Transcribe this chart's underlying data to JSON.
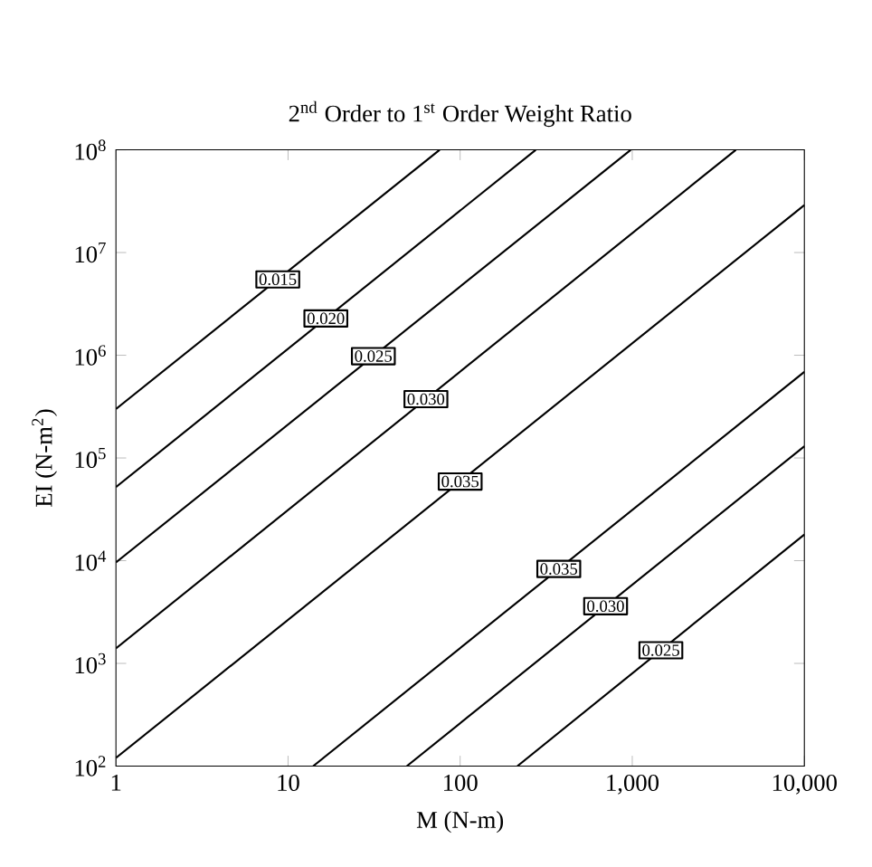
{
  "chart_data": {
    "type": "line",
    "title": "2$^{nd}$ Order to 1$^{st}$ Order Weight Ratio",
    "xlabel": "M (N-m)",
    "ylabel": "EI (N-m$^{2}$)",
    "log": "xy",
    "xlim": [
      1,
      10000
    ],
    "ylim": [
      100,
      100000000
    ],
    "xticks": [
      1,
      10,
      100,
      {
        "value": 1000,
        "label": "1,000"
      },
      {
        "value": 10000,
        "label": "10,000"
      }
    ],
    "yticks": [
      {
        "value": 100,
        "label": "10$^{2}$"
      },
      {
        "value": 1000,
        "label": "10$^{3}$"
      },
      {
        "value": 10000,
        "label": "10$^{4}$"
      },
      {
        "value": 100000,
        "label": "10$^{5}$"
      },
      {
        "value": 1000000,
        "label": "10$^{6}$"
      },
      {
        "value": 10000000,
        "label": "10$^{7}$"
      },
      {
        "value": 100000000,
        "label": "10$^{8}$"
      }
    ],
    "grid": false,
    "legend": false,
    "marker": "none",
    "line_style": "solid",
    "series": [
      {
        "name": "0.015",
        "color": "#000000",
        "x": [
          1,
          76
        ],
        "values": [
          300000,
          100000000
        ]
      },
      {
        "name": "0.020",
        "color": "#000000",
        "x": [
          1,
          275
        ],
        "values": [
          52000,
          100000000
        ]
      },
      {
        "name": "0.025",
        "color": "#000000",
        "x": [
          1,
          980
        ],
        "values": [
          9600,
          100000000
        ]
      },
      {
        "name": "0.030",
        "color": "#000000",
        "x": [
          1,
          4000
        ],
        "values": [
          1400,
          100000000
        ]
      },
      {
        "name": "0.035",
        "color": "#000000",
        "x": [
          1,
          10000
        ],
        "values": [
          120,
          29000000
        ]
      },
      {
        "name": "0.035",
        "color": "#000000",
        "x": [
          14,
          10000
        ],
        "values": [
          100,
          690000
        ]
      },
      {
        "name": "0.030",
        "color": "#000000",
        "x": [
          49,
          10000
        ],
        "values": [
          100,
          130000
        ]
      },
      {
        "name": "0.025",
        "color": "#000000",
        "x": [
          215,
          10000
        ],
        "values": [
          100,
          18000
        ]
      }
    ]
  }
}
